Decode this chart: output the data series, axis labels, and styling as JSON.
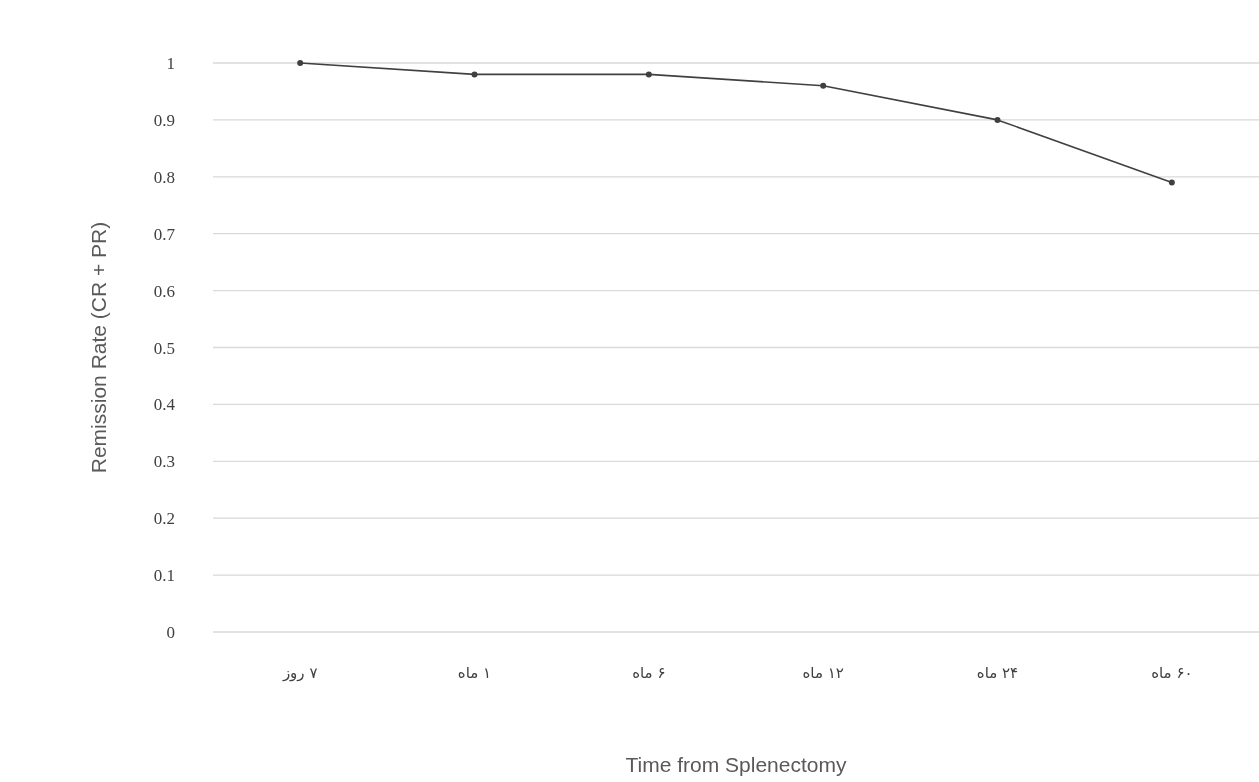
{
  "chart_data": {
    "type": "line",
    "xlabel": "Time from Splenectomy",
    "ylabel": "Remission Rate (CR + PR)",
    "categories": [
      "۷ روز",
      "۱ ماه",
      "۶ ماه",
      "۱۲ ماه",
      "۲۴ ماه",
      "۶۰ ماه"
    ],
    "values": [
      1,
      0.98,
      0.98,
      0.96,
      0.9,
      0.79
    ],
    "color": "#404040",
    "marker": "circle",
    "line_style": "solid",
    "grid": "y",
    "ylim": [
      0,
      1
    ],
    "yticks": [
      0,
      0.1,
      0.2,
      0.3,
      0.4,
      0.5,
      0.6,
      0.7,
      0.8,
      0.9,
      1
    ]
  }
}
